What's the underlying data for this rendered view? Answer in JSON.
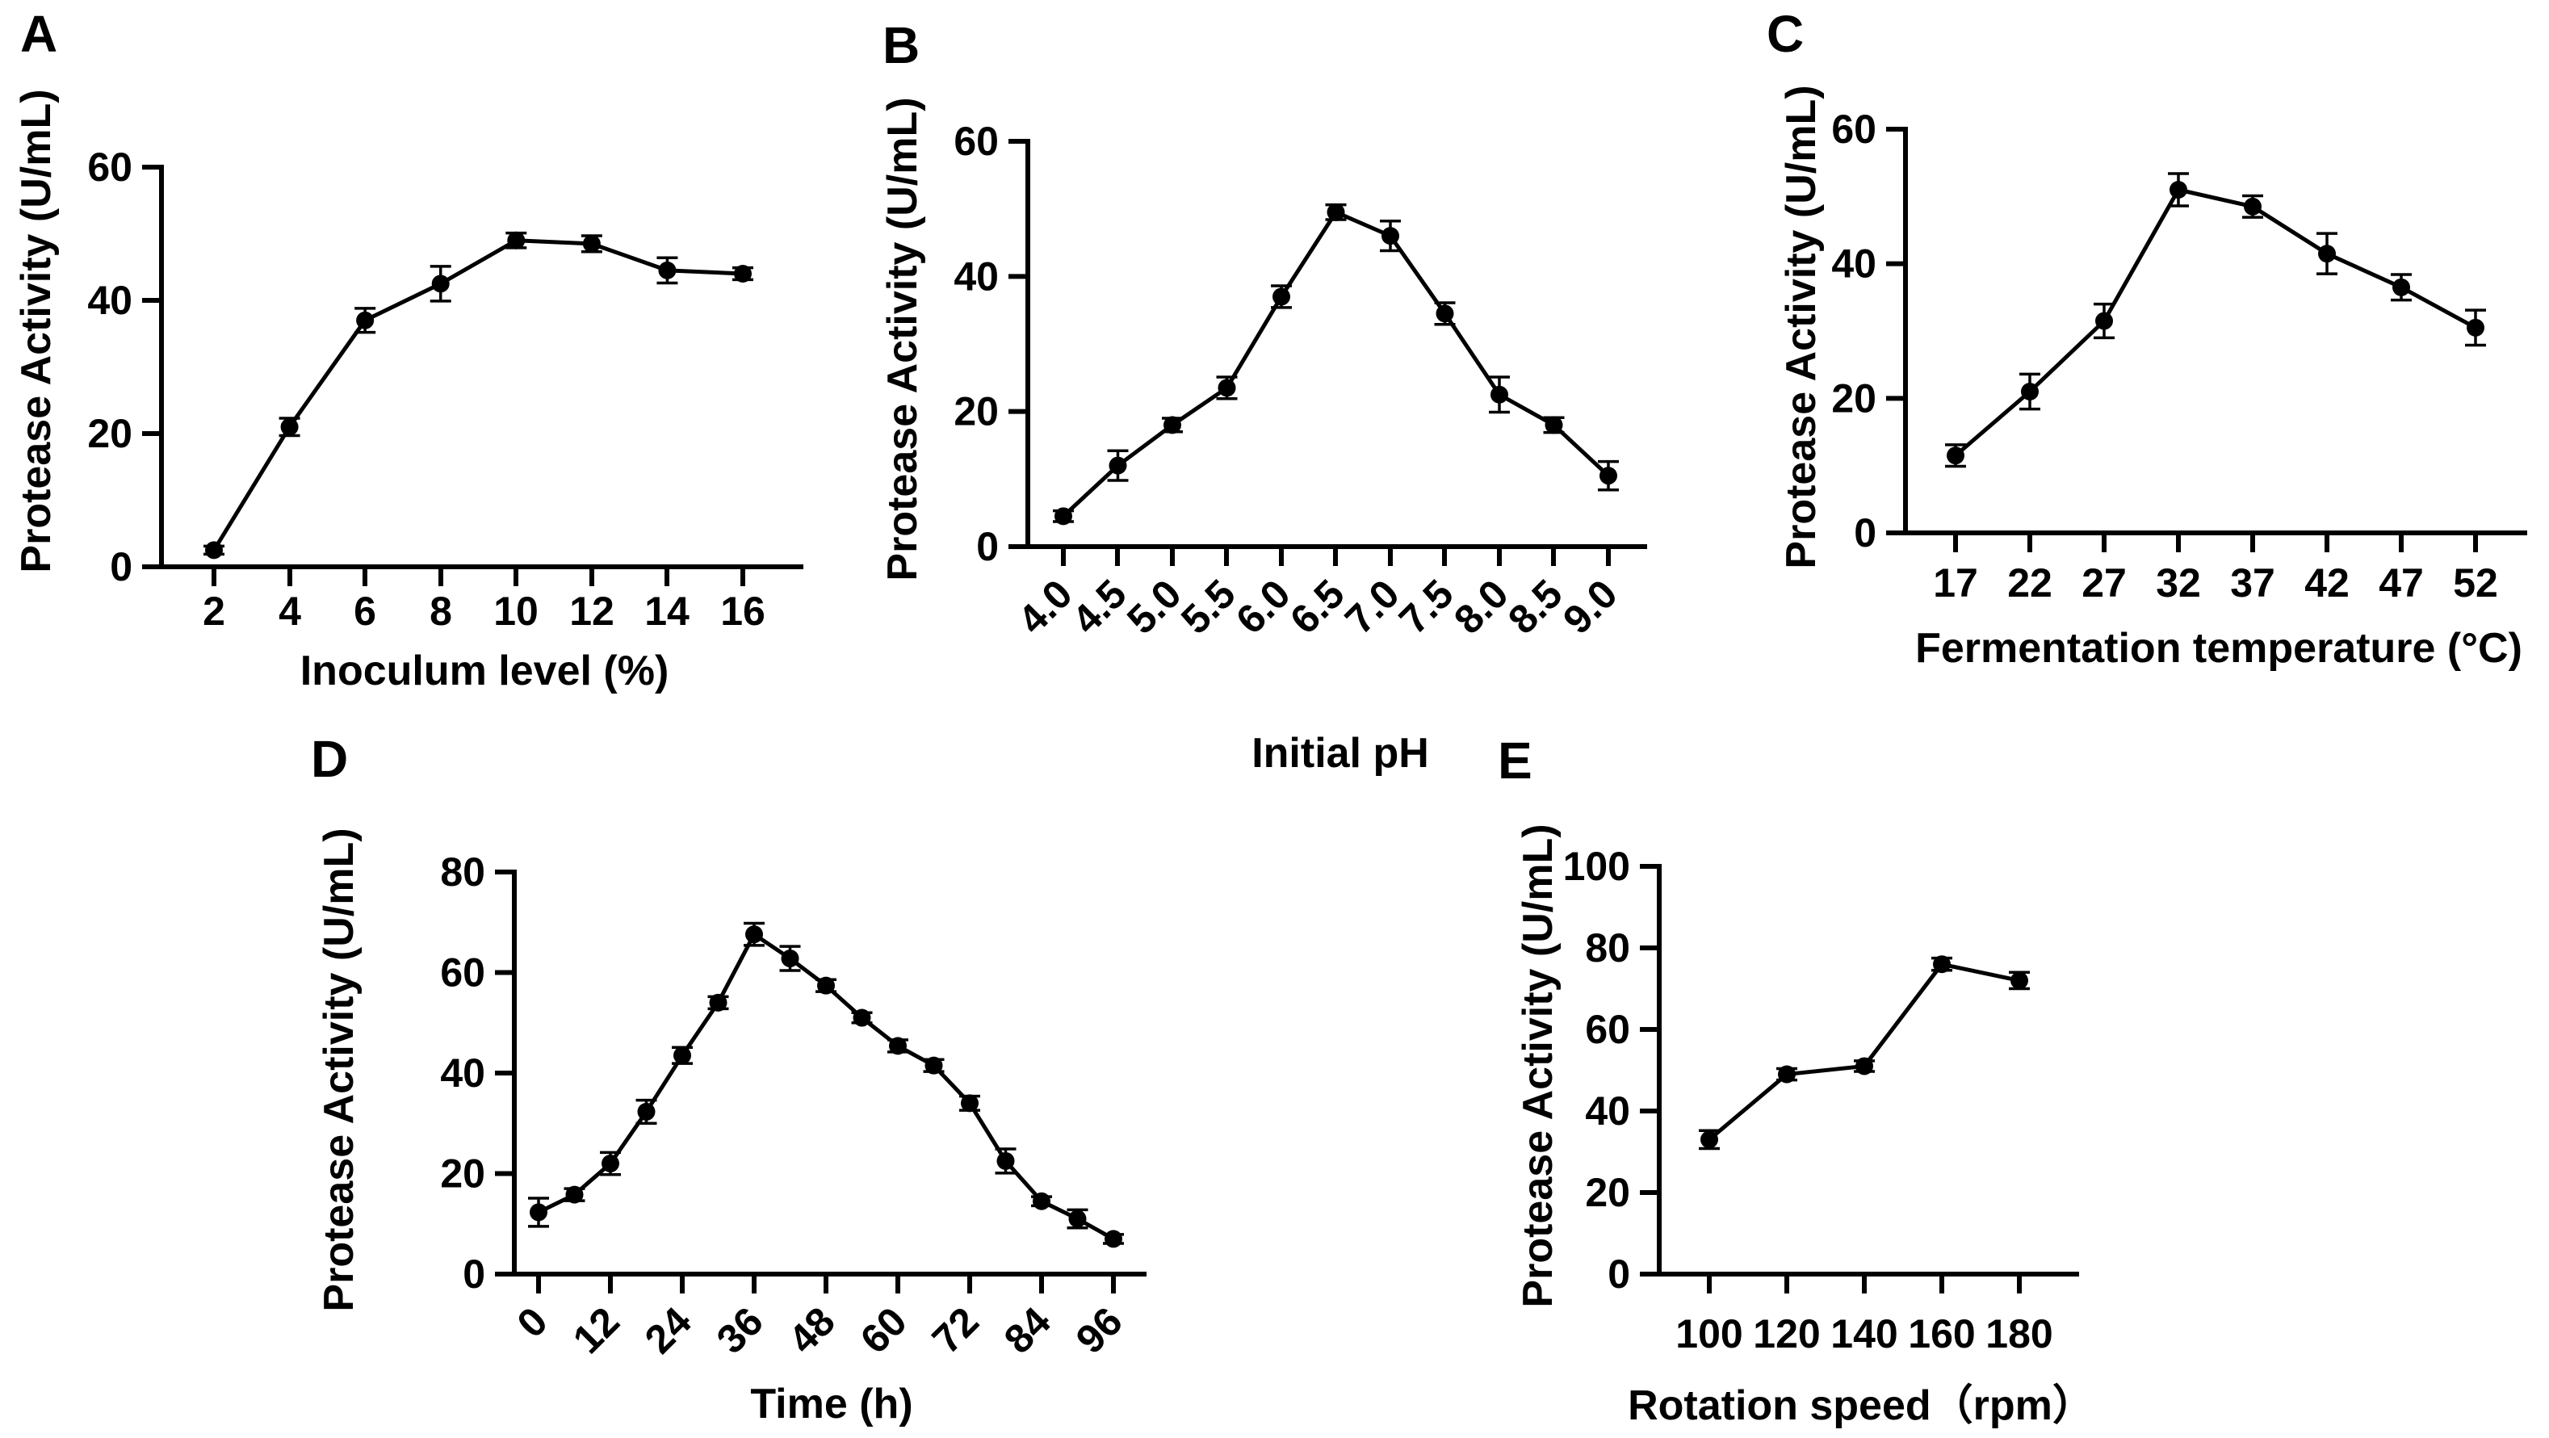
{
  "style": {
    "ink": "#000000",
    "paper": "#ffffff",
    "marker": "filled-circle",
    "error_bars": "symmetric-caps"
  },
  "chart_data": [
    {
      "panel": "A",
      "type": "line",
      "title": "",
      "xlabel": "Inoculum level (%)",
      "ylabel": "Protease Activity (U/mL)",
      "x": [
        2,
        4,
        6,
        8,
        10,
        12,
        14,
        16
      ],
      "xticks": [
        2,
        4,
        6,
        8,
        10,
        12,
        14,
        16
      ],
      "categories": [
        "2",
        "4",
        "6",
        "8",
        "10",
        "12",
        "14",
        "16"
      ],
      "values": [
        2.5,
        21,
        37,
        42.5,
        49,
        48.5,
        44.5,
        44
      ],
      "errors": [
        0.6,
        1.3,
        1.8,
        2.6,
        1.1,
        1.2,
        1.9,
        0.9
      ],
      "ylim": [
        0,
        60
      ],
      "yticks": [
        0,
        20,
        40,
        60
      ],
      "x_tick_rotation": 0,
      "legend": "none",
      "grid": false
    },
    {
      "panel": "B",
      "type": "line",
      "title": "",
      "xlabel": "Initial pH",
      "ylabel": "Protease Activity (U/mL)",
      "x": [
        4.0,
        4.5,
        5.0,
        5.5,
        6.0,
        6.5,
        7.0,
        7.5,
        8.0,
        8.5,
        9.0
      ],
      "xticks": [
        4.0,
        4.5,
        5.0,
        5.5,
        6.0,
        6.5,
        7.0,
        7.5,
        8.0,
        8.5,
        9.0
      ],
      "categories": [
        "4.0",
        "4.5",
        "5.0",
        "5.5",
        "6.0",
        "6.5",
        "7.0",
        "7.5",
        "8.0",
        "8.5",
        "9.0"
      ],
      "values": [
        4.5,
        12,
        18,
        23.5,
        37,
        49.5,
        46,
        34.5,
        22.5,
        18,
        10.5
      ],
      "errors": [
        0.8,
        2.2,
        1.0,
        1.6,
        1.6,
        1.1,
        2.2,
        1.6,
        2.6,
        1.1,
        2.1
      ],
      "ylim": [
        0,
        60
      ],
      "yticks": [
        0,
        20,
        40,
        60
      ],
      "x_tick_rotation": 45,
      "legend": "none",
      "grid": false
    },
    {
      "panel": "C",
      "type": "line",
      "title": "",
      "xlabel": "Fermentation temperature (°C)",
      "ylabel": "Protease Activity (U/mL)",
      "x": [
        17,
        22,
        27,
        32,
        37,
        42,
        47,
        52
      ],
      "xticks": [
        17,
        22,
        27,
        32,
        37,
        42,
        47,
        52
      ],
      "categories": [
        "17",
        "22",
        "27",
        "32",
        "37",
        "42",
        "47",
        "52"
      ],
      "values": [
        11.5,
        21,
        31.5,
        51,
        48.5,
        41.5,
        36.5,
        30.5
      ],
      "errors": [
        1.6,
        2.6,
        2.5,
        2.4,
        1.6,
        3.0,
        1.9,
        2.6
      ],
      "ylim": [
        0,
        60
      ],
      "yticks": [
        0,
        20,
        40,
        60
      ],
      "x_tick_rotation": 0,
      "legend": "none",
      "grid": false
    },
    {
      "panel": "D",
      "type": "line",
      "title": "",
      "xlabel": "Time (h)",
      "ylabel": "Protease Activity (U/mL)",
      "x": [
        0,
        6,
        12,
        18,
        24,
        30,
        36,
        42,
        48,
        54,
        60,
        66,
        72,
        78,
        84,
        90,
        96
      ],
      "xticks": [
        0,
        12,
        24,
        36,
        48,
        60,
        72,
        84,
        96
      ],
      "categories": [
        "0",
        "12",
        "24",
        "36",
        "48",
        "60",
        "72",
        "84",
        "96"
      ],
      "values": [
        12.3,
        15.8,
        22,
        32.3,
        43.5,
        54,
        67.6,
        62.8,
        57.4,
        51,
        45.4,
        41.5,
        34,
        22.5,
        14.5,
        11,
        7
      ],
      "errors": [
        2.8,
        1.2,
        2.2,
        2.3,
        1.6,
        1.2,
        2.2,
        2.4,
        1.2,
        1.0,
        1.2,
        1.2,
        1.4,
        2.4,
        0.9,
        1.8,
        0.9
      ],
      "ylim": [
        0,
        80
      ],
      "yticks": [
        0,
        20,
        40,
        60,
        80
      ],
      "x_tick_rotation": 45,
      "legend": "none",
      "grid": false
    },
    {
      "panel": "E",
      "type": "line",
      "title": "",
      "xlabel": "Rotation speed（rpm）",
      "ylabel": "Protease Activity (U/mL)",
      "x": [
        100,
        120,
        140,
        160,
        180
      ],
      "xticks": [
        100,
        120,
        140,
        160,
        180
      ],
      "categories": [
        "100",
        "120",
        "140",
        "160",
        "180"
      ],
      "values": [
        33,
        49,
        51,
        76,
        72
      ],
      "errors": [
        2.2,
        1.4,
        1.3,
        1.5,
        2.0
      ],
      "ylim": [
        0,
        100
      ],
      "yticks": [
        0,
        20,
        40,
        60,
        80,
        100
      ],
      "x_tick_rotation": 0,
      "legend": "none",
      "grid": false
    }
  ]
}
